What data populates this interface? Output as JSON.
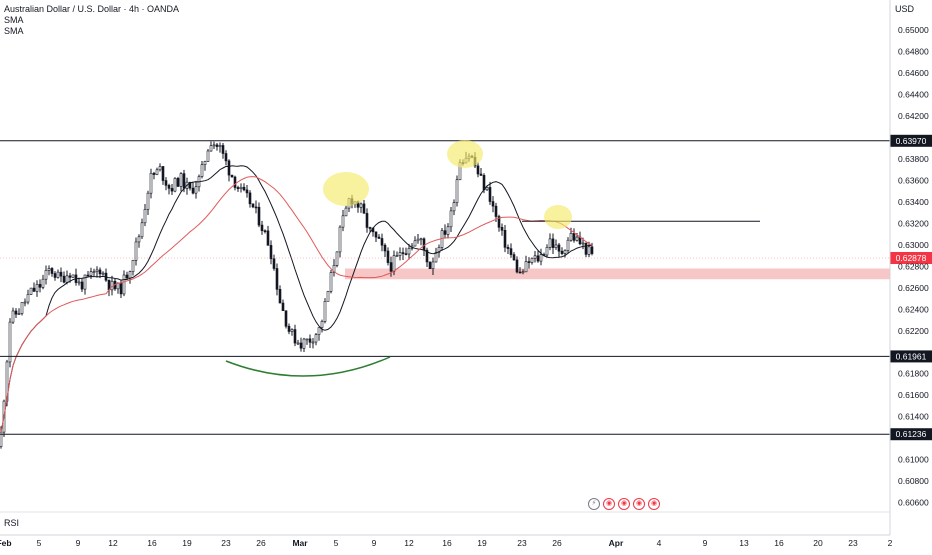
{
  "header": {
    "title": "Australian Dollar / U.S. Dollar · 4h · OANDA",
    "indicator_1": "SMA",
    "indicator_2": "SMA"
  },
  "currency_label": "USD",
  "rsi_label": "RSI",
  "toolbar_icons": [
    "lightning-icon",
    "chart-icon",
    "chart-icon",
    "chart-icon",
    "chart-icon"
  ],
  "colors": {
    "candle": "#131722",
    "sma_fast": "#131722",
    "sma_slow": "#e05a5a",
    "support_zone": "#f7c6c6",
    "highlight": "#f5e96a",
    "arc": "#2e7d32",
    "price_tag_bg": "#131722",
    "current_price_bg": "#f23645"
  },
  "chart_data": {
    "type": "candlestick",
    "title": "Australian Dollar / U.S. Dollar · 4h · OANDA",
    "ylim": [
      0.6053,
      0.6517
    ],
    "y_ticks": [
      "0.65000",
      "0.64800",
      "0.64600",
      "0.64400",
      "0.64200",
      "0.63800",
      "0.63600",
      "0.63400",
      "0.63200",
      "0.63000",
      "0.62800",
      "0.62600",
      "0.62400",
      "0.62200",
      "0.61800",
      "0.61600",
      "0.61400",
      "0.61000",
      "0.60800",
      "0.60600"
    ],
    "x_ticks": [
      "Feb",
      "5",
      "9",
      "12",
      "16",
      "19",
      "23",
      "26",
      "Mar",
      "5",
      "9",
      "12",
      "16",
      "19",
      "23",
      "26",
      "Apr",
      "4",
      "9",
      "13",
      "16",
      "20",
      "23",
      "2"
    ],
    "horizontal_levels": [
      {
        "value": "0.63970",
        "label": "0.63970"
      },
      {
        "value": "0.61961",
        "label": "0.61961"
      },
      {
        "value": "0.61236",
        "label": "0.61236"
      }
    ],
    "current_price": "0.62878",
    "support_zone": [
      0.6268,
      0.6278
    ],
    "resistance_segment": 0.6322,
    "close_path": [
      {
        "x": 0,
        "y": 0.6112
      },
      {
        "x": 10,
        "y": 0.623
      },
      {
        "x": 20,
        "y": 0.624
      },
      {
        "x": 30,
        "y": 0.6255
      },
      {
        "x": 40,
        "y": 0.6262
      },
      {
        "x": 50,
        "y": 0.6278
      },
      {
        "x": 60,
        "y": 0.6268
      },
      {
        "x": 70,
        "y": 0.6275
      },
      {
        "x": 80,
        "y": 0.6262
      },
      {
        "x": 90,
        "y": 0.627
      },
      {
        "x": 100,
        "y": 0.6278
      },
      {
        "x": 110,
        "y": 0.6262
      },
      {
        "x": 120,
        "y": 0.6258
      },
      {
        "x": 130,
        "y": 0.628
      },
      {
        "x": 140,
        "y": 0.6312
      },
      {
        "x": 150,
        "y": 0.6362
      },
      {
        "x": 160,
        "y": 0.637
      },
      {
        "x": 170,
        "y": 0.6352
      },
      {
        "x": 180,
        "y": 0.6362
      },
      {
        "x": 190,
        "y": 0.635
      },
      {
        "x": 200,
        "y": 0.6362
      },
      {
        "x": 210,
        "y": 0.6398
      },
      {
        "x": 220,
        "y": 0.639
      },
      {
        "x": 230,
        "y": 0.6368
      },
      {
        "x": 240,
        "y": 0.635
      },
      {
        "x": 250,
        "y": 0.634
      },
      {
        "x": 260,
        "y": 0.6322
      },
      {
        "x": 270,
        "y": 0.6298
      },
      {
        "x": 280,
        "y": 0.6248
      },
      {
        "x": 290,
        "y": 0.6218
      },
      {
        "x": 300,
        "y": 0.6208
      },
      {
        "x": 310,
        "y": 0.6212
      },
      {
        "x": 320,
        "y": 0.6222
      },
      {
        "x": 330,
        "y": 0.6265
      },
      {
        "x": 340,
        "y": 0.6312
      },
      {
        "x": 350,
        "y": 0.6345
      },
      {
        "x": 360,
        "y": 0.6335
      },
      {
        "x": 370,
        "y": 0.6312
      },
      {
        "x": 380,
        "y": 0.63
      },
      {
        "x": 390,
        "y": 0.628
      },
      {
        "x": 400,
        "y": 0.629
      },
      {
        "x": 410,
        "y": 0.6302
      },
      {
        "x": 420,
        "y": 0.6305
      },
      {
        "x": 430,
        "y": 0.628
      },
      {
        "x": 440,
        "y": 0.6305
      },
      {
        "x": 450,
        "y": 0.6322
      },
      {
        "x": 460,
        "y": 0.638
      },
      {
        "x": 470,
        "y": 0.6385
      },
      {
        "x": 480,
        "y": 0.6362
      },
      {
        "x": 490,
        "y": 0.6345
      },
      {
        "x": 500,
        "y": 0.6312
      },
      {
        "x": 510,
        "y": 0.6292
      },
      {
        "x": 520,
        "y": 0.6272
      },
      {
        "x": 530,
        "y": 0.6285
      },
      {
        "x": 540,
        "y": 0.6288
      },
      {
        "x": 550,
        "y": 0.6305
      },
      {
        "x": 560,
        "y": 0.629
      },
      {
        "x": 570,
        "y": 0.631
      },
      {
        "x": 580,
        "y": 0.6302
      },
      {
        "x": 594,
        "y": 0.6288
      }
    ]
  }
}
